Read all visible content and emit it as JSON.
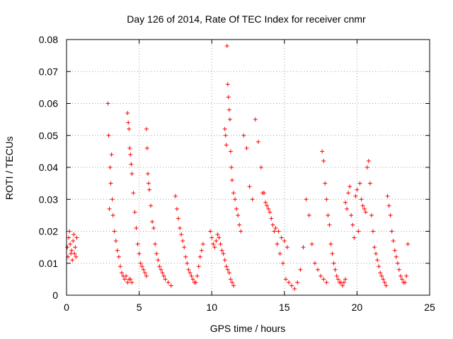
{
  "chart_data": {
    "type": "scatter",
    "title": "Day 126 of 2014, Rate Of TEC Index for receiver cnmr",
    "xlabel": "GPS time / hours",
    "ylabel": "ROTI / TECUs",
    "xlim": [
      0,
      25
    ],
    "ylim": [
      0,
      0.08
    ],
    "x_ticks": [
      "0",
      "5",
      "10",
      "15",
      "20",
      "25"
    ],
    "y_ticks": [
      "0",
      "0.01",
      "0.02",
      "0.03",
      "0.04",
      "0.05",
      "0.06",
      "0.07",
      "0.08"
    ],
    "grid": true,
    "marker": "plus",
    "color": "#ff0000",
    "series": [
      {
        "name": "ROTI",
        "x": [
          0.05,
          0.1,
          0.15,
          0.2,
          0.25,
          0.3,
          0.35,
          0.4,
          0.45,
          0.5,
          0.55,
          0.6,
          0.65,
          0.7,
          2.85,
          2.9,
          2.95,
          3.0,
          3.05,
          3.1,
          3.15,
          3.2,
          3.3,
          3.4,
          3.5,
          3.6,
          3.7,
          3.8,
          3.9,
          4.0,
          4.1,
          4.2,
          4.3,
          4.4,
          4.5,
          4.2,
          4.25,
          4.3,
          4.35,
          4.4,
          4.45,
          4.5,
          4.6,
          4.7,
          4.8,
          4.9,
          5.0,
          5.1,
          5.2,
          5.3,
          5.4,
          5.5,
          5.5,
          5.55,
          5.6,
          5.65,
          5.7,
          5.8,
          5.9,
          6.0,
          6.1,
          6.2,
          6.3,
          6.4,
          6.5,
          6.6,
          6.7,
          6.8,
          7.0,
          7.2,
          7.5,
          7.6,
          7.7,
          7.8,
          7.9,
          8.0,
          8.1,
          8.2,
          8.3,
          8.4,
          8.5,
          8.6,
          8.7,
          8.8,
          8.9,
          9.0,
          9.1,
          9.2,
          9.3,
          9.4,
          9.9,
          10.0,
          10.1,
          10.2,
          10.3,
          10.4,
          10.5,
          10.6,
          10.7,
          10.8,
          10.9,
          11.0,
          11.1,
          11.2,
          11.3,
          11.4,
          11.5,
          10.9,
          10.95,
          11.0,
          11.05,
          11.1,
          11.15,
          11.2,
          11.25,
          11.3,
          11.35,
          11.4,
          11.5,
          11.6,
          11.7,
          11.8,
          11.9,
          12.0,
          12.2,
          12.4,
          12.6,
          12.8,
          13.0,
          13.2,
          13.4,
          13.6,
          13.8,
          14.0,
          14.2,
          14.4,
          14.6,
          14.8,
          15.0,
          15.2,
          13.5,
          13.7,
          13.9,
          14.1,
          14.3,
          14.5,
          14.7,
          14.9,
          15.1,
          15.3,
          15.5,
          15.7,
          15.9,
          16.1,
          16.3,
          16.5,
          16.7,
          16.9,
          17.1,
          17.3,
          17.5,
          17.7,
          17.9,
          17.6,
          17.7,
          17.8,
          17.9,
          18.0,
          18.1,
          18.2,
          18.3,
          18.4,
          18.5,
          18.6,
          18.7,
          18.8,
          18.9,
          19.0,
          19.1,
          19.2,
          19.2,
          19.3,
          19.4,
          19.5,
          19.6,
          19.7,
          19.8,
          19.9,
          20.0,
          20.1,
          20.2,
          20.3,
          20.4,
          20.5,
          20.6,
          20.7,
          20.8,
          20.9,
          21.0,
          21.1,
          21.2,
          21.3,
          21.4,
          21.5,
          21.6,
          21.7,
          21.8,
          21.9,
          22.0,
          22.1,
          22.2,
          22.3,
          22.4,
          22.5,
          22.6,
          22.7,
          22.8,
          22.9,
          23.0,
          23.1,
          23.2,
          23.3,
          23.4,
          23.5
        ],
        "y": [
          0.015,
          0.012,
          0.018,
          0.02,
          0.016,
          0.013,
          0.014,
          0.011,
          0.017,
          0.019,
          0.013,
          0.015,
          0.012,
          0.018,
          0.06,
          0.05,
          0.027,
          0.04,
          0.035,
          0.044,
          0.03,
          0.025,
          0.02,
          0.017,
          0.014,
          0.012,
          0.009,
          0.007,
          0.006,
          0.005,
          0.006,
          0.004,
          0.005,
          0.005,
          0.004,
          0.057,
          0.054,
          0.052,
          0.046,
          0.044,
          0.041,
          0.038,
          0.032,
          0.026,
          0.021,
          0.016,
          0.013,
          0.01,
          0.009,
          0.008,
          0.007,
          0.006,
          0.052,
          0.046,
          0.038,
          0.035,
          0.033,
          0.028,
          0.023,
          0.021,
          0.016,
          0.013,
          0.011,
          0.009,
          0.008,
          0.007,
          0.006,
          0.005,
          0.004,
          0.003,
          0.031,
          0.027,
          0.024,
          0.021,
          0.019,
          0.017,
          0.015,
          0.012,
          0.01,
          0.008,
          0.007,
          0.006,
          0.005,
          0.004,
          0.004,
          0.006,
          0.009,
          0.012,
          0.014,
          0.016,
          0.02,
          0.018,
          0.016,
          0.015,
          0.017,
          0.019,
          0.018,
          0.016,
          0.014,
          0.013,
          0.011,
          0.009,
          0.008,
          0.007,
          0.005,
          0.004,
          0.003,
          0.052,
          0.05,
          0.047,
          0.078,
          0.066,
          0.062,
          0.058,
          0.055,
          0.045,
          0.04,
          0.036,
          0.032,
          0.03,
          0.027,
          0.025,
          0.022,
          0.02,
          0.05,
          0.046,
          0.034,
          0.03,
          0.055,
          0.048,
          0.04,
          0.032,
          0.028,
          0.026,
          0.022,
          0.021,
          0.02,
          0.018,
          0.017,
          0.015,
          0.032,
          0.029,
          0.027,
          0.024,
          0.02,
          0.016,
          0.013,
          0.01,
          0.005,
          0.004,
          0.003,
          0.002,
          0.004,
          0.008,
          0.015,
          0.03,
          0.025,
          0.016,
          0.01,
          0.008,
          0.006,
          0.005,
          0.004,
          0.045,
          0.042,
          0.035,
          0.03,
          0.025,
          0.022,
          0.016,
          0.013,
          0.01,
          0.008,
          0.006,
          0.005,
          0.004,
          0.004,
          0.003,
          0.004,
          0.005,
          0.029,
          0.027,
          0.032,
          0.034,
          0.025,
          0.022,
          0.018,
          0.031,
          0.033,
          0.02,
          0.035,
          0.03,
          0.028,
          0.027,
          0.026,
          0.04,
          0.042,
          0.035,
          0.025,
          0.02,
          0.015,
          0.013,
          0.011,
          0.009,
          0.007,
          0.006,
          0.005,
          0.004,
          0.003,
          0.031,
          0.028,
          0.025,
          0.02,
          0.017,
          0.014,
          0.012,
          0.01,
          0.008,
          0.006,
          0.005,
          0.004,
          0.004,
          0.006,
          0.016
        ]
      }
    ]
  }
}
